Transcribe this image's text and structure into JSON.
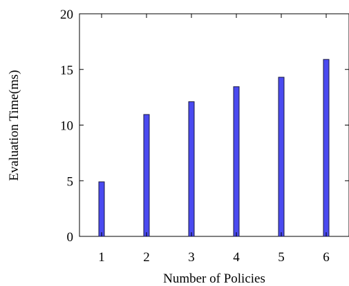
{
  "chart_data": {
    "type": "bar",
    "categories": [
      "1",
      "2",
      "3",
      "4",
      "5",
      "6"
    ],
    "values": [
      4.9,
      10.95,
      12.1,
      13.45,
      14.3,
      15.9
    ],
    "x_tick_labels": [
      "1",
      "2",
      "3",
      "4",
      "5",
      "6"
    ],
    "y_tick_labels": [
      "0",
      "5",
      "10",
      "15",
      "20"
    ],
    "y_ticks": [
      0,
      5,
      10,
      15,
      20
    ],
    "xlabel": "Number of Policies",
    "ylabel": "Evaluation Time(ms)",
    "ylim": [
      0,
      20
    ],
    "grid": false,
    "bar_color": "#4a4af0",
    "bar_edge_color": "#1a1a40"
  }
}
